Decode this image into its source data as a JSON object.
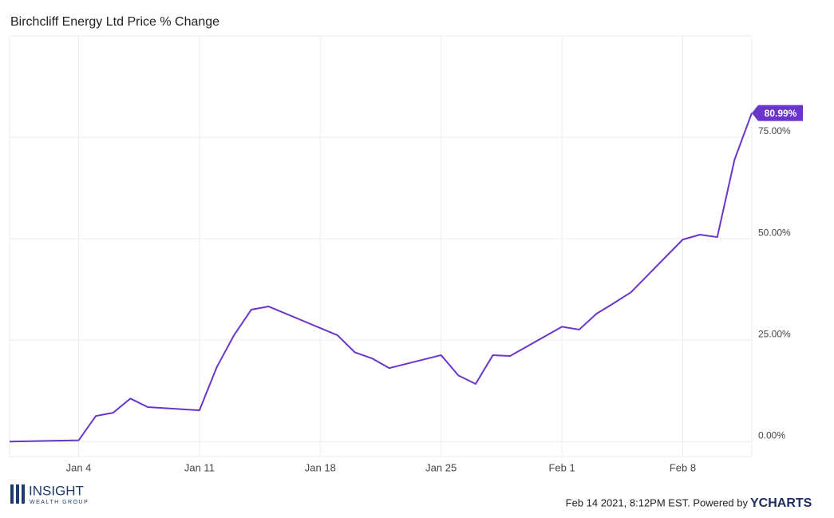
{
  "chart_data": {
    "type": "line",
    "title": "Birchcliff Energy Ltd Price % Change",
    "x": [
      "Dec 31",
      "Jan 4",
      "Jan 5",
      "Jan 6",
      "Jan 7",
      "Jan 8",
      "Jan 11",
      "Jan 12",
      "Jan 13",
      "Jan 14",
      "Jan 15",
      "Jan 19",
      "Jan 20",
      "Jan 21",
      "Jan 22",
      "Jan 25",
      "Jan 26",
      "Jan 27",
      "Jan 28",
      "Jan 29",
      "Feb 1",
      "Feb 2",
      "Feb 3",
      "Feb 4",
      "Feb 5",
      "Feb 8",
      "Feb 9",
      "Feb 10",
      "Feb 11",
      "Feb 12"
    ],
    "series": [
      {
        "name": "Birchcliff Energy Ltd",
        "color": "#6a35c9",
        "values": [
          0,
          0.3,
          6.3,
          7.1,
          10.6,
          8.5,
          7.7,
          18.3,
          26.2,
          32.5,
          33.3,
          26.2,
          22.0,
          20.5,
          18.1,
          21.3,
          16.3,
          14.2,
          21.3,
          21.1,
          28.3,
          27.6,
          31.5,
          34.1,
          36.8,
          49.8,
          51.0,
          50.4,
          69.5,
          80.99
        ],
        "last_value_label": "80.99%"
      }
    ],
    "xlim": [
      "Dec 31",
      "Feb 12"
    ],
    "xticks": [
      "Jan 4",
      "Jan 11",
      "Jan 18",
      "Jan 25",
      "Feb 1",
      "Feb 8"
    ],
    "ylim": [
      -3.7,
      100
    ],
    "yticks": [
      {
        "value": 0,
        "label": "0.00%"
      },
      {
        "value": 25,
        "label": "25.00%"
      },
      {
        "value": 50,
        "label": "50.00%"
      },
      {
        "value": 75,
        "label": "75.00%"
      }
    ],
    "grid": true
  },
  "footer": {
    "timestamp": "Feb 14 2021, 8:12PM EST. Powered by",
    "brand": "YCHARTS",
    "logo_name": "INSIGHT",
    "logo_sub": "WEALTH GROUP"
  }
}
